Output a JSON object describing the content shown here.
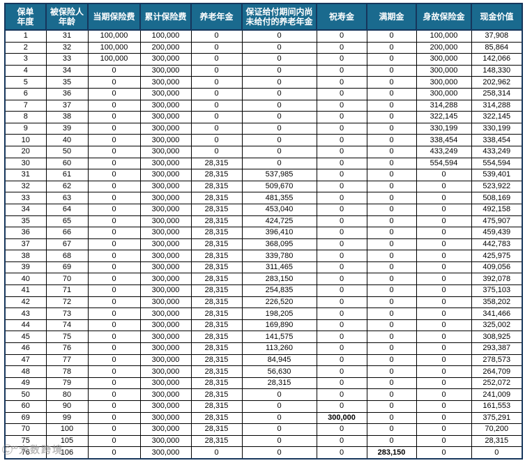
{
  "table": {
    "columns": [
      "保单\n年度",
      "被保险人\n年龄",
      "当期保险费",
      "累计保险费",
      "养老年金",
      "保证给付期间内尚\n未给付的养老年金",
      "祝寿金",
      "满期金",
      "身故保险金",
      "现金价值"
    ],
    "rows": [
      [
        "1",
        "31",
        "100,000",
        "100,000",
        "0",
        "0",
        "0",
        "0",
        "100,000",
        "37,908"
      ],
      [
        "2",
        "32",
        "100,000",
        "200,000",
        "0",
        "0",
        "0",
        "0",
        "200,000",
        "85,864"
      ],
      [
        "3",
        "33",
        "100,000",
        "300,000",
        "0",
        "0",
        "0",
        "0",
        "300,000",
        "142,066"
      ],
      [
        "4",
        "34",
        "0",
        "300,000",
        "0",
        "0",
        "0",
        "0",
        "300,000",
        "148,330"
      ],
      [
        "5",
        "35",
        "0",
        "300,000",
        "0",
        "0",
        "0",
        "0",
        "300,000",
        "202,962"
      ],
      [
        "6",
        "36",
        "0",
        "300,000",
        "0",
        "0",
        "0",
        "0",
        "300,000",
        "258,314"
      ],
      [
        "7",
        "37",
        "0",
        "300,000",
        "0",
        "0",
        "0",
        "0",
        "314,288",
        "314,288"
      ],
      [
        "8",
        "38",
        "0",
        "300,000",
        "0",
        "0",
        "0",
        "0",
        "322,145",
        "322,145"
      ],
      [
        "9",
        "39",
        "0",
        "300,000",
        "0",
        "0",
        "0",
        "0",
        "330,199",
        "330,199"
      ],
      [
        "10",
        "40",
        "0",
        "300,000",
        "0",
        "0",
        "0",
        "0",
        "338,454",
        "338,454"
      ],
      [
        "20",
        "50",
        "0",
        "300,000",
        "0",
        "0",
        "0",
        "0",
        "433,249",
        "433,249"
      ],
      [
        "30",
        "60",
        "0",
        "300,000",
        "28,315",
        "0",
        "0",
        "0",
        "554,594",
        "554,594"
      ],
      [
        "31",
        "61",
        "0",
        "300,000",
        "28,315",
        "537,985",
        "0",
        "0",
        "0",
        "539,401"
      ],
      [
        "32",
        "62",
        "0",
        "300,000",
        "28,315",
        "509,670",
        "0",
        "0",
        "0",
        "523,922"
      ],
      [
        "33",
        "63",
        "0",
        "300,000",
        "28,315",
        "481,355",
        "0",
        "0",
        "0",
        "508,169"
      ],
      [
        "34",
        "64",
        "0",
        "300,000",
        "28,315",
        "453,040",
        "0",
        "0",
        "0",
        "492,158"
      ],
      [
        "35",
        "65",
        "0",
        "300,000",
        "28,315",
        "424,725",
        "0",
        "0",
        "0",
        "475,907"
      ],
      [
        "36",
        "66",
        "0",
        "300,000",
        "28,315",
        "396,410",
        "0",
        "0",
        "0",
        "459,439"
      ],
      [
        "37",
        "67",
        "0",
        "300,000",
        "28,315",
        "368,095",
        "0",
        "0",
        "0",
        "442,783"
      ],
      [
        "38",
        "68",
        "0",
        "300,000",
        "28,315",
        "339,780",
        "0",
        "0",
        "0",
        "425,975"
      ],
      [
        "39",
        "69",
        "0",
        "300,000",
        "28,315",
        "311,465",
        "0",
        "0",
        "0",
        "409,056"
      ],
      [
        "40",
        "70",
        "0",
        "300,000",
        "28,315",
        "283,150",
        "0",
        "0",
        "0",
        "392,078"
      ],
      [
        "41",
        "71",
        "0",
        "300,000",
        "28,315",
        "254,835",
        "0",
        "0",
        "0",
        "375,103"
      ],
      [
        "42",
        "72",
        "0",
        "300,000",
        "28,315",
        "226,520",
        "0",
        "0",
        "0",
        "358,202"
      ],
      [
        "43",
        "73",
        "0",
        "300,000",
        "28,315",
        "198,205",
        "0",
        "0",
        "0",
        "341,466"
      ],
      [
        "44",
        "74",
        "0",
        "300,000",
        "28,315",
        "169,890",
        "0",
        "0",
        "0",
        "325,002"
      ],
      [
        "45",
        "75",
        "0",
        "300,000",
        "28,315",
        "141,575",
        "0",
        "0",
        "0",
        "308,925"
      ],
      [
        "46",
        "76",
        "0",
        "300,000",
        "28,315",
        "113,260",
        "0",
        "0",
        "0",
        "293,387"
      ],
      [
        "47",
        "77",
        "0",
        "300,000",
        "28,315",
        "84,945",
        "0",
        "0",
        "0",
        "278,573"
      ],
      [
        "48",
        "78",
        "0",
        "300,000",
        "28,315",
        "56,630",
        "0",
        "0",
        "0",
        "264,709"
      ],
      [
        "49",
        "79",
        "0",
        "300,000",
        "28,315",
        "28,315",
        "0",
        "0",
        "0",
        "252,072"
      ],
      [
        "50",
        "80",
        "0",
        "300,000",
        "28,315",
        "0",
        "0",
        "0",
        "0",
        "241,009"
      ],
      [
        "60",
        "90",
        "0",
        "300,000",
        "28,315",
        "0",
        "0",
        "0",
        "0",
        "161,553"
      ],
      [
        "69",
        "99",
        "0",
        "300,000",
        "28,315",
        "0",
        "300,000",
        "0",
        "0",
        "375,291"
      ],
      [
        "70",
        "100",
        "0",
        "300,000",
        "28,315",
        "0",
        "0",
        "0",
        "0",
        "70,200"
      ],
      [
        "75",
        "105",
        "0",
        "300,000",
        "28,315",
        "0",
        "0",
        "0",
        "0",
        "28,315"
      ],
      [
        "76",
        "106",
        "0",
        "300,000",
        "0",
        "0",
        "0",
        "283,150",
        "0",
        "0"
      ]
    ],
    "conditional_format": {
      "rule": "background applies only when cell value is not 0",
      "pension_col_index": 4,
      "pension_bg": "#F7CBCC",
      "unpaid_col_index": 5,
      "unpaid_bg": "#E2EFDA",
      "cash_col_index": 9,
      "cash_bg": "#FFF2CC",
      "highlight_cells": [
        {
          "row_index": 33,
          "col_index": 6,
          "value": "300,000"
        },
        {
          "row_index": 36,
          "col_index": 7,
          "value": "283,150"
        }
      ],
      "highlight_bg": "#FFFF00",
      "highlight_text": "#FF0000"
    },
    "header_bg": "#1A6A8E",
    "header_text_color": "#FFFFFF",
    "outer_border_color": "#16365C"
  },
  "watermark": {
    "logo": "Ⓒ°°",
    "text": "大数跨境"
  }
}
